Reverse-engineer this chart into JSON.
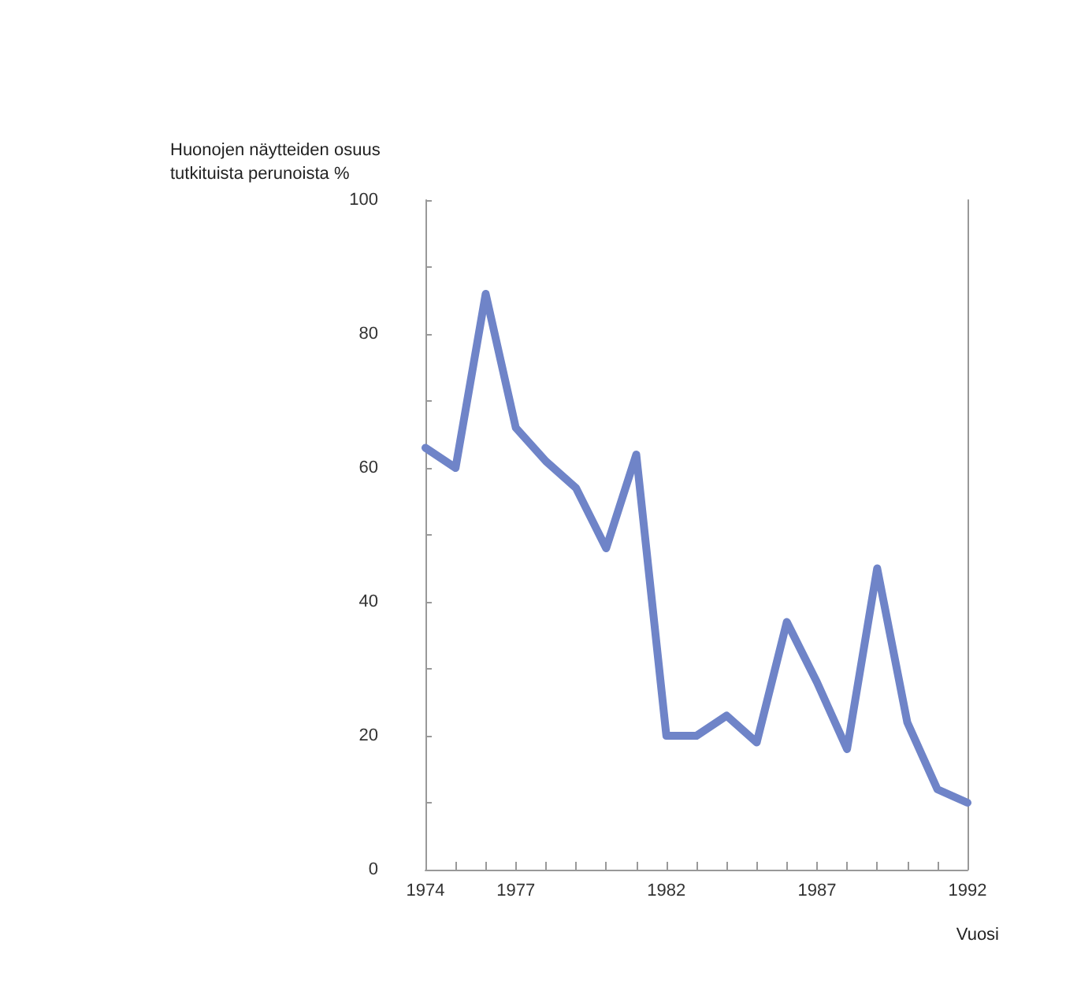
{
  "chart_data": {
    "type": "line",
    "xlabel": "Vuosi",
    "ylabel": "Huonojen näytteiden osuus tutkituista perunoista %",
    "x": [
      1974,
      1975,
      1976,
      1977,
      1978,
      1979,
      1980,
      1981,
      1982,
      1983,
      1984,
      1985,
      1986,
      1987,
      1988,
      1989,
      1990,
      1991,
      1992
    ],
    "series": [
      {
        "color": "#6f84c8",
        "values": [
          63,
          60,
          86,
          66,
          61,
          57,
          48,
          62,
          20,
          20,
          23,
          19,
          37,
          28,
          18,
          45,
          22,
          12,
          10
        ]
      }
    ],
    "xlim": [
      1974,
      1992
    ],
    "xticks": [
      1974,
      {
        "value": 1975,
        "label": null
      },
      {
        "value": 1976,
        "label": null
      },
      1977,
      {
        "value": 1978,
        "label": null
      },
      {
        "value": 1979,
        "label": null
      },
      {
        "value": 1980,
        "label": null
      },
      {
        "value": 1981,
        "label": null
      },
      1982,
      {
        "value": 1983,
        "label": null
      },
      {
        "value": 1984,
        "label": null
      },
      {
        "value": 1985,
        "label": null
      },
      {
        "value": 1986,
        "label": null
      },
      1987,
      {
        "value": 1988,
        "label": null
      },
      {
        "value": 1989,
        "label": null
      },
      {
        "value": 1990,
        "label": null
      },
      {
        "value": 1991,
        "label": null
      },
      1992
    ],
    "ylim": [
      0,
      100
    ],
    "yticks": [
      0,
      {
        "value": 10,
        "label": null
      },
      20,
      {
        "value": 30,
        "label": null
      },
      40,
      {
        "value": 50,
        "label": null
      },
      60,
      {
        "value": 70,
        "label": null
      },
      80,
      {
        "value": 90,
        "label": null
      },
      100
    ],
    "grid": false,
    "marker": "none",
    "line_style": "solid"
  }
}
